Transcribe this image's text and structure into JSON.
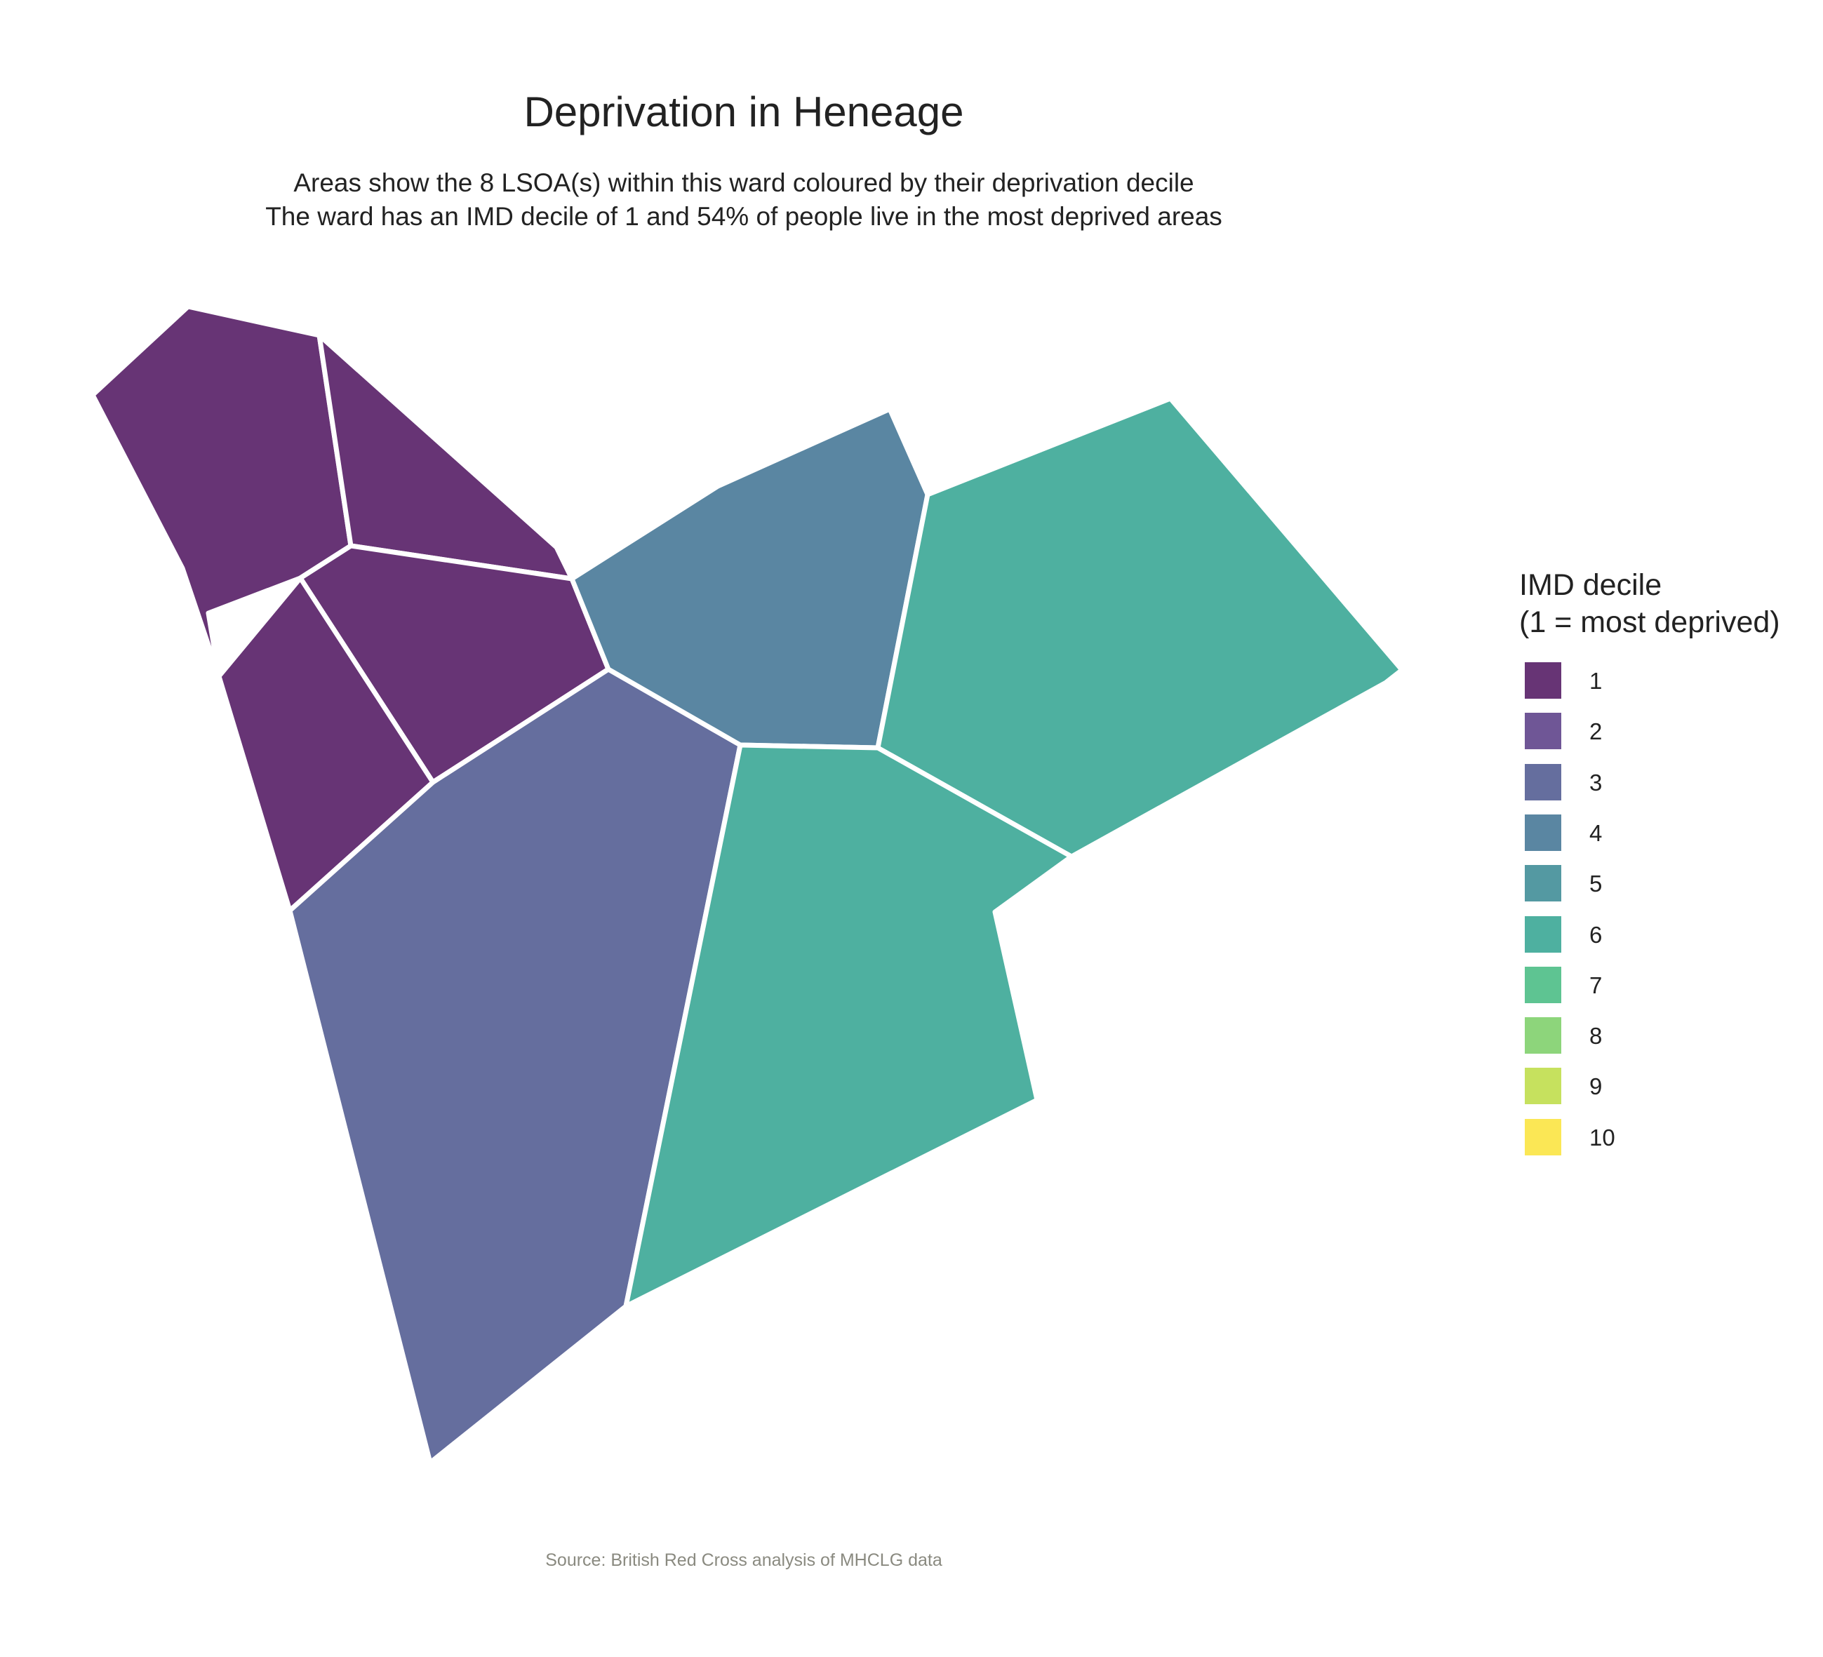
{
  "header": {
    "title": "Deprivation in Heneage",
    "subtitle_line1": "Areas show the 8 LSOA(s) within this ward coloured by their deprivation decile",
    "subtitle_line2": "The ward has an IMD decile of 1 and 54% of people live in the most deprived areas"
  },
  "caption": "Source: British Red Cross analysis of MHCLG data",
  "map": {
    "ward": "Heneage",
    "lsoa_count": 8,
    "areas": [
      {
        "decile": 1
      },
      {
        "decile": 1
      },
      {
        "decile": 1
      },
      {
        "decile": 1
      },
      {
        "decile": 3
      },
      {
        "decile": 4
      },
      {
        "decile": 6
      },
      {
        "decile": 6
      }
    ]
  },
  "legend": {
    "title_line1": "IMD decile",
    "title_line2": "(1 = most deprived)",
    "items": [
      {
        "label": "1",
        "color": "#673475"
      },
      {
        "label": "2",
        "color": "#6f5696"
      },
      {
        "label": "3",
        "color": "#656e9e"
      },
      {
        "label": "4",
        "color": "#5a86a2"
      },
      {
        "label": "5",
        "color": "#5499a2"
      },
      {
        "label": "6",
        "color": "#4eb0a0"
      },
      {
        "label": "7",
        "color": "#5ec492"
      },
      {
        "label": "8",
        "color": "#8dd57b"
      },
      {
        "label": "9",
        "color": "#c6e15e"
      },
      {
        "label": "10",
        "color": "#fbe755"
      }
    ]
  }
}
